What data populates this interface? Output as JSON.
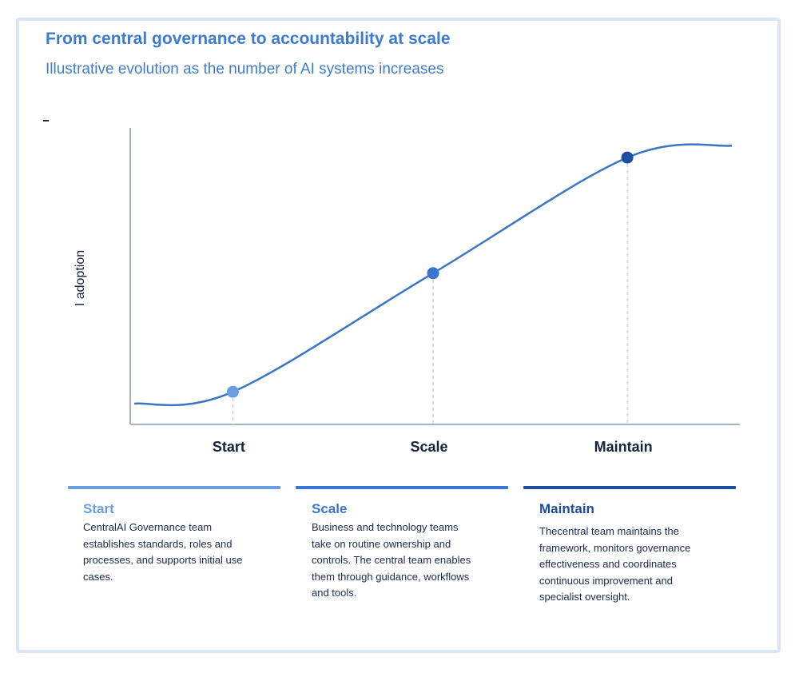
{
  "title": "From central governance to accountability at scale",
  "subtitle": "Illustrative evolution as the number of AI systems increases",
  "chart_data": {
    "type": "line",
    "title": "From central governance to accountability at scale",
    "subtitle": "Illustrative evolution as the number of AI systems increases",
    "ylabel": "I adoption",
    "xlabel": "",
    "categories": [
      "Start",
      "Scale",
      "Maintain"
    ],
    "curve": "s-curve",
    "xlim": [
      0,
      100
    ],
    "ylim": [
      0,
      100
    ],
    "x": [
      0,
      16.5,
      50,
      82.5,
      100
    ],
    "series": [
      {
        "values": [
          7,
          11,
          51,
          90,
          94
        ]
      }
    ],
    "markers": [
      {
        "category": "Start",
        "x": 16.5,
        "y": 11,
        "color": "#6b9ee0"
      },
      {
        "category": "Scale",
        "x": 50,
        "y": 51,
        "color": "#3a76cf"
      },
      {
        "category": "Maintain",
        "x": 82.5,
        "y": 90,
        "color": "#1d4f9e"
      }
    ],
    "line_color": "#3a76c4",
    "grid": false
  },
  "phases": [
    {
      "title": "Start",
      "color": "#6b9ee0",
      "description": "CentralAI Governance team establishes standards, roles and processes, and supports initial use cases."
    },
    {
      "title": "Scale",
      "color": "#3a76cf",
      "description": "Business and technology teams take on routine ownership and controls. The central team enables them through guidance, workflows and tools."
    },
    {
      "title": "Maintain",
      "color": "#1d4f9e",
      "description": "Thecentral team maintains the framework, monitors governance effectiveness and coordinates continuous improvement and specialist oversight."
    }
  ]
}
